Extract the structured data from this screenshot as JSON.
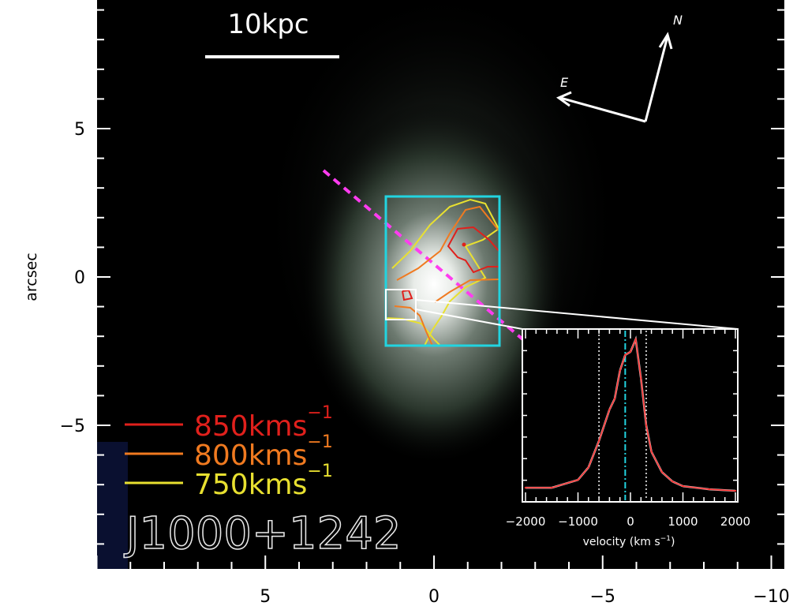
{
  "chart_data": [
    {
      "type": "image",
      "object_name": "J1000+1242",
      "ylabel": "arcsec",
      "xlabel": "",
      "xlim": [
        10,
        -10
      ],
      "ylim": [
        -10,
        10
      ],
      "x_ticks": [
        "5",
        "0",
        "−5",
        "−10"
      ],
      "x_tick_values": [
        5,
        0,
        -5,
        -10
      ],
      "y_ticks": [
        "5",
        "0",
        "−5"
      ],
      "y_tick_values": [
        5,
        0,
        -5
      ],
      "scale_bar_label": "10kpc",
      "compass": {
        "north": "N",
        "east": "E"
      },
      "legend": [
        {
          "label": "850kms",
          "sup": "−1",
          "color": "#e0201c"
        },
        {
          "label": "800kms",
          "sup": "−1",
          "color": "#f07a20"
        },
        {
          "label": "750kms",
          "sup": "−1",
          "color": "#e8e030"
        }
      ],
      "legend_position": "bottom-left",
      "colors": {
        "field_box": "#22d4e0",
        "slit_line": "#ff3cf0",
        "zoom_box": "#ffffff"
      }
    },
    {
      "type": "line",
      "xlabel": "velocity (km s",
      "xlabel_sup": "−1",
      "xlabel_close": ")",
      "xlim": [
        -2000,
        2000
      ],
      "x_ticks": [
        "−2000",
        "−1000",
        "0",
        "1000",
        "2000"
      ],
      "x_tick_values": [
        -2000,
        -1000,
        0,
        1000,
        2000
      ],
      "vlines": {
        "dotted": [
          -600,
          300
        ],
        "dash_dot_cyan": -100
      },
      "series": [
        {
          "color": "#ff3030",
          "x": [
            -2000,
            -1500,
            -1000,
            -800,
            -600,
            -400,
            -300,
            -200,
            -100,
            0,
            100,
            200,
            300,
            400,
            600,
            800,
            1000,
            1500,
            2000
          ],
          "y": [
            0.05,
            0.05,
            0.1,
            0.18,
            0.35,
            0.55,
            0.62,
            0.8,
            0.9,
            0.92,
            1.0,
            0.75,
            0.45,
            0.28,
            0.15,
            0.09,
            0.06,
            0.04,
            0.03
          ]
        }
      ]
    }
  ]
}
